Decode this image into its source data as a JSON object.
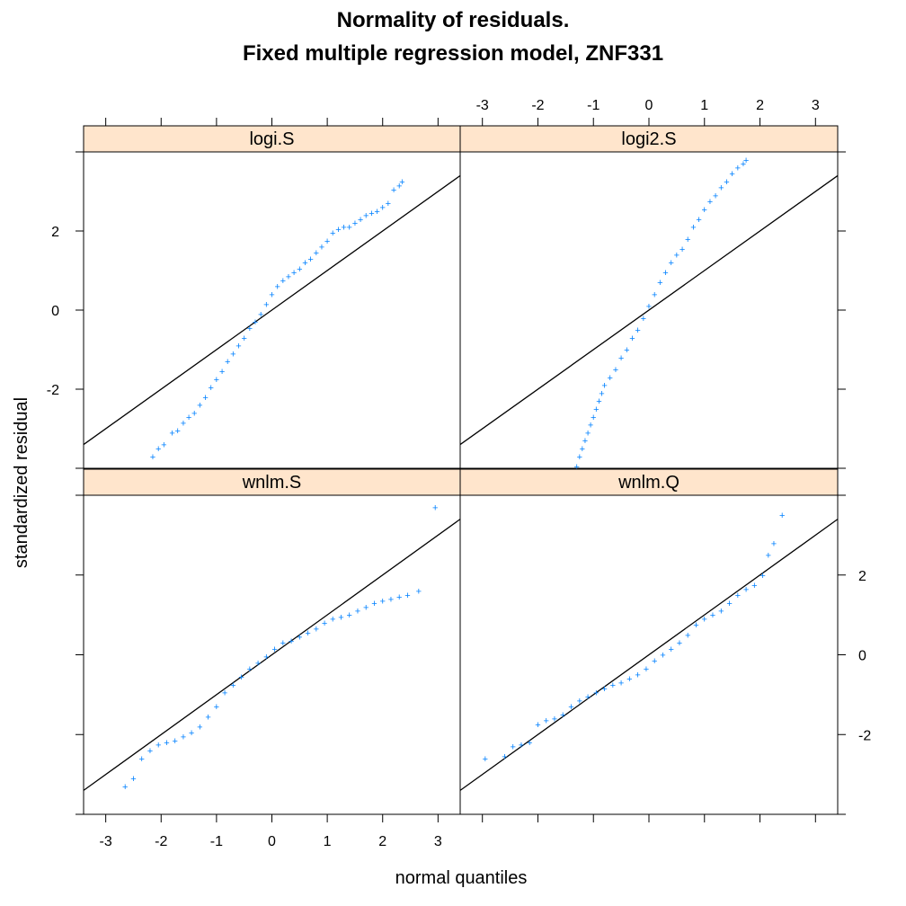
{
  "chart_data": {
    "type": "scatter",
    "title_lines": [
      "Normality of residuals.",
      "Fixed multiple regression model, ZNF331"
    ],
    "xlabel": "normal quantiles",
    "ylabel": "standardized residual",
    "xlim": [
      -3.4,
      3.4
    ],
    "ylim": [
      -4.0,
      4.0
    ],
    "x_ticks": [
      -3,
      -2,
      -1,
      0,
      1,
      2,
      3
    ],
    "y_ticks": [
      -2,
      0,
      2
    ],
    "colors": {
      "points": "#0080ff",
      "strip": "#ffe5cc",
      "reference_line": "#000000"
    },
    "point_marker": "+",
    "panels": [
      {
        "name": "logi.S",
        "row": "top",
        "col": "left",
        "line": {
          "intercept": 0,
          "slope": 1.0
        },
        "points": [
          [
            -2.15,
            -3.7
          ],
          [
            -2.05,
            -3.5
          ],
          [
            -1.95,
            -3.4
          ],
          [
            -1.8,
            -3.1
          ],
          [
            -1.7,
            -3.05
          ],
          [
            -1.6,
            -2.85
          ],
          [
            -1.5,
            -2.7
          ],
          [
            -1.4,
            -2.6
          ],
          [
            -1.3,
            -2.4
          ],
          [
            -1.2,
            -2.2
          ],
          [
            -1.1,
            -1.95
          ],
          [
            -1.0,
            -1.75
          ],
          [
            -0.9,
            -1.55
          ],
          [
            -0.8,
            -1.3
          ],
          [
            -0.7,
            -1.1
          ],
          [
            -0.6,
            -0.9
          ],
          [
            -0.5,
            -0.7
          ],
          [
            -0.4,
            -0.45
          ],
          [
            -0.3,
            -0.3
          ],
          [
            -0.2,
            -0.1
          ],
          [
            -0.1,
            0.15
          ],
          [
            0.0,
            0.4
          ],
          [
            0.1,
            0.6
          ],
          [
            0.2,
            0.75
          ],
          [
            0.3,
            0.85
          ],
          [
            0.4,
            0.95
          ],
          [
            0.5,
            1.05
          ],
          [
            0.6,
            1.2
          ],
          [
            0.7,
            1.3
          ],
          [
            0.8,
            1.45
          ],
          [
            0.9,
            1.6
          ],
          [
            1.0,
            1.75
          ],
          [
            1.1,
            1.95
          ],
          [
            1.2,
            2.05
          ],
          [
            1.3,
            2.1
          ],
          [
            1.4,
            2.1
          ],
          [
            1.5,
            2.2
          ],
          [
            1.6,
            2.3
          ],
          [
            1.7,
            2.4
          ],
          [
            1.8,
            2.45
          ],
          [
            1.9,
            2.5
          ],
          [
            2.0,
            2.6
          ],
          [
            2.1,
            2.7
          ],
          [
            2.2,
            3.05
          ],
          [
            2.3,
            3.15
          ],
          [
            2.35,
            3.25
          ]
        ]
      },
      {
        "name": "logi2.S",
        "row": "top",
        "col": "right",
        "line": {
          "intercept": 0,
          "slope": 1.0
        },
        "points": [
          [
            -1.3,
            -3.95
          ],
          [
            -1.25,
            -3.7
          ],
          [
            -1.2,
            -3.5
          ],
          [
            -1.15,
            -3.3
          ],
          [
            -1.1,
            -3.1
          ],
          [
            -1.05,
            -2.9
          ],
          [
            -1.0,
            -2.7
          ],
          [
            -0.95,
            -2.5
          ],
          [
            -0.9,
            -2.3
          ],
          [
            -0.85,
            -2.1
          ],
          [
            -0.8,
            -1.9
          ],
          [
            -0.7,
            -1.7
          ],
          [
            -0.6,
            -1.5
          ],
          [
            -0.5,
            -1.2
          ],
          [
            -0.4,
            -1.0
          ],
          [
            -0.3,
            -0.7
          ],
          [
            -0.2,
            -0.5
          ],
          [
            -0.1,
            -0.2
          ],
          [
            0.0,
            0.1
          ],
          [
            0.1,
            0.4
          ],
          [
            0.2,
            0.7
          ],
          [
            0.3,
            0.95
          ],
          [
            0.4,
            1.2
          ],
          [
            0.5,
            1.4
          ],
          [
            0.6,
            1.55
          ],
          [
            0.7,
            1.8
          ],
          [
            0.8,
            2.1
          ],
          [
            0.9,
            2.3
          ],
          [
            1.0,
            2.55
          ],
          [
            1.1,
            2.75
          ],
          [
            1.2,
            2.9
          ],
          [
            1.3,
            3.1
          ],
          [
            1.4,
            3.25
          ],
          [
            1.5,
            3.45
          ],
          [
            1.6,
            3.6
          ],
          [
            1.7,
            3.7
          ],
          [
            1.75,
            3.8
          ]
        ]
      },
      {
        "name": "wnlm.S",
        "row": "bottom",
        "col": "left",
        "line": {
          "intercept": 0,
          "slope": 1.0
        },
        "points": [
          [
            -2.65,
            -3.3
          ],
          [
            -2.5,
            -3.1
          ],
          [
            -2.35,
            -2.6
          ],
          [
            -2.2,
            -2.4
          ],
          [
            -2.05,
            -2.25
          ],
          [
            -1.9,
            -2.2
          ],
          [
            -1.75,
            -2.15
          ],
          [
            -1.6,
            -2.05
          ],
          [
            -1.45,
            -1.95
          ],
          [
            -1.3,
            -1.8
          ],
          [
            -1.15,
            -1.55
          ],
          [
            -1.0,
            -1.3
          ],
          [
            -0.85,
            -0.95
          ],
          [
            -0.7,
            -0.75
          ],
          [
            -0.55,
            -0.55
          ],
          [
            -0.4,
            -0.35
          ],
          [
            -0.25,
            -0.2
          ],
          [
            -0.1,
            -0.05
          ],
          [
            0.05,
            0.15
          ],
          [
            0.2,
            0.3
          ],
          [
            0.35,
            0.35
          ],
          [
            0.5,
            0.45
          ],
          [
            0.65,
            0.55
          ],
          [
            0.8,
            0.65
          ],
          [
            0.95,
            0.8
          ],
          [
            1.1,
            0.9
          ],
          [
            1.25,
            0.95
          ],
          [
            1.4,
            1.0
          ],
          [
            1.55,
            1.1
          ],
          [
            1.7,
            1.2
          ],
          [
            1.85,
            1.3
          ],
          [
            2.0,
            1.35
          ],
          [
            2.15,
            1.4
          ],
          [
            2.3,
            1.45
          ],
          [
            2.45,
            1.5
          ],
          [
            2.65,
            1.6
          ],
          [
            2.95,
            3.7
          ]
        ]
      },
      {
        "name": "wnlm.Q",
        "row": "bottom",
        "col": "right",
        "line": {
          "intercept": 0,
          "slope": 1.0
        },
        "points": [
          [
            -2.95,
            -2.6
          ],
          [
            -2.6,
            -2.55
          ],
          [
            -2.45,
            -2.3
          ],
          [
            -2.3,
            -2.25
          ],
          [
            -2.15,
            -2.2
          ],
          [
            -2.0,
            -1.75
          ],
          [
            -1.85,
            -1.65
          ],
          [
            -1.7,
            -1.6
          ],
          [
            -1.55,
            -1.5
          ],
          [
            -1.4,
            -1.3
          ],
          [
            -1.25,
            -1.15
          ],
          [
            -1.1,
            -1.05
          ],
          [
            -0.95,
            -0.95
          ],
          [
            -0.8,
            -0.85
          ],
          [
            -0.65,
            -0.75
          ],
          [
            -0.5,
            -0.7
          ],
          [
            -0.35,
            -0.6
          ],
          [
            -0.2,
            -0.5
          ],
          [
            -0.05,
            -0.35
          ],
          [
            0.1,
            -0.15
          ],
          [
            0.25,
            0.0
          ],
          [
            0.4,
            0.15
          ],
          [
            0.55,
            0.3
          ],
          [
            0.7,
            0.5
          ],
          [
            0.85,
            0.75
          ],
          [
            1.0,
            0.9
          ],
          [
            1.15,
            1.0
          ],
          [
            1.3,
            1.1
          ],
          [
            1.45,
            1.3
          ],
          [
            1.6,
            1.5
          ],
          [
            1.75,
            1.65
          ],
          [
            1.9,
            1.75
          ],
          [
            2.05,
            2.0
          ],
          [
            2.15,
            2.5
          ],
          [
            2.25,
            2.8
          ],
          [
            2.4,
            3.5
          ]
        ]
      }
    ]
  }
}
